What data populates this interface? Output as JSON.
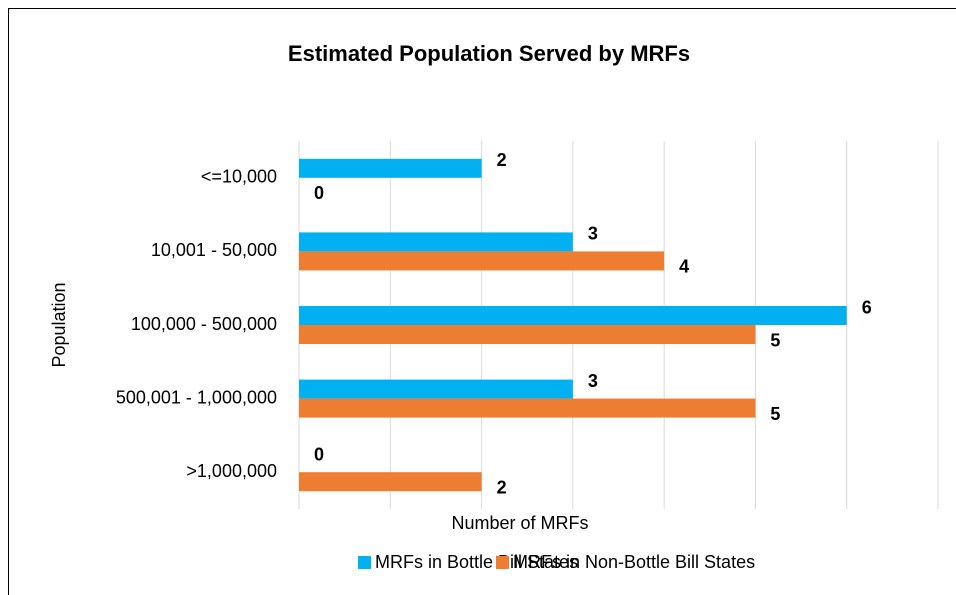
{
  "chart_data": {
    "type": "bar",
    "orientation": "horizontal",
    "title": "Estimated Population Served by MRFs",
    "x_label": "Number of MRFs",
    "y_label": "Population",
    "categories": [
      "<=10,000",
      "10,001 - 50,000",
      "100,000 - 500,000",
      "500,001 - 1,000,000",
      ">1,000,000"
    ],
    "series": [
      {
        "name": "MRFs in Bottle Bill States",
        "color": "#00b0f0",
        "values": [
          2,
          3,
          6,
          3,
          0
        ]
      },
      {
        "name": "MRFs in Non-Bottle Bill States",
        "color": "#ed7d31",
        "values": [
          0,
          4,
          5,
          5,
          2
        ]
      }
    ],
    "xlim": [
      0,
      7
    ],
    "xticks": [
      0,
      1,
      2,
      3,
      4,
      5,
      6,
      7
    ],
    "grid": true,
    "legend": "bottom"
  }
}
